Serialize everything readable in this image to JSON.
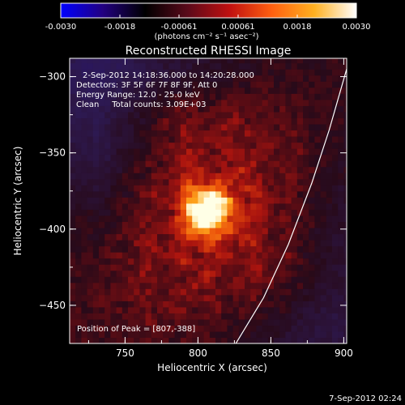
{
  "chart_data": {
    "type": "heatmap",
    "title": "Reconstructed RHESSI Image",
    "xlabel": "Heliocentric X (arcsec)",
    "ylabel": "Heliocentric Y (arcsec)",
    "xlim": [
      712,
      902
    ],
    "ylim": [
      -475,
      -288
    ],
    "x_ticks": [
      750,
      800,
      850,
      900
    ],
    "y_ticks": [
      -300,
      -350,
      -400,
      -450
    ],
    "colorbar": {
      "range": [
        -0.003,
        0.003
      ],
      "tick_labels": [
        "-0.0030",
        "-0.0018",
        "-0.00061",
        "0.00061",
        "0.0018",
        "0.0030"
      ],
      "unit_label": "(photons cm⁻² s⁻¹ asec⁻²)",
      "colors": [
        "#0000ff",
        "#220080",
        "#000000",
        "#5a0a1a",
        "#c01010",
        "#ff6010",
        "#ffb020",
        "#ffffff"
      ]
    },
    "info_lines": [
      "2-Sep-2012 14:18:36.000 to 14:20:28.000",
      "Detectors: 3F 5F 6F 7F 8F 9F, Att 0",
      "Energy Range: 12.0 - 25.0 keV",
      "Clean     Total counts: 3.09E+03"
    ],
    "peak_label": "Position of Peak = [807,-388]",
    "peak": [
      807,
      -388
    ],
    "limb_curve": [
      [
        826,
        -475
      ],
      [
        845,
        -445
      ],
      [
        862,
        -410
      ],
      [
        878,
        -370
      ],
      [
        890,
        -335
      ],
      [
        902,
        -295
      ]
    ],
    "limb_color": "#ffffff",
    "timestamp": "7-Sep-2012 02:24",
    "grid": false
  }
}
